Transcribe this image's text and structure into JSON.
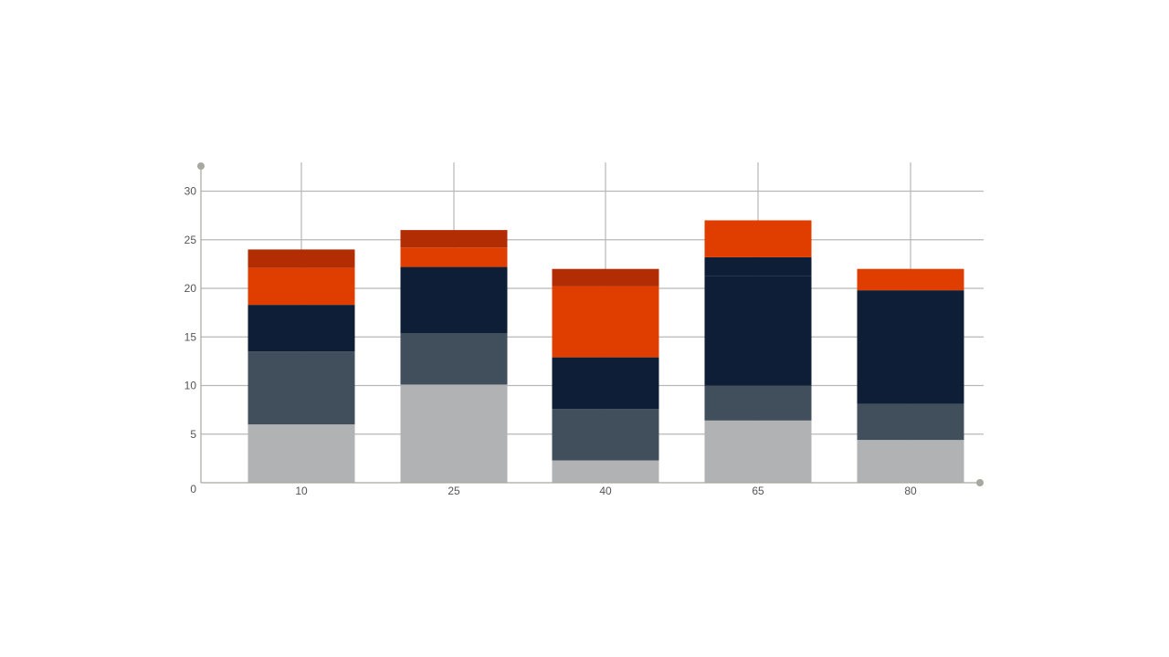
{
  "chart_data": {
    "type": "bar",
    "stacked": true,
    "categories": [
      "10",
      "25",
      "40",
      "65",
      "80"
    ],
    "series": [
      {
        "color": "#b1b2b3",
        "values": [
          6.0,
          10.1,
          2.3,
          6.4,
          4.4
        ]
      },
      {
        "color": "#414e5b",
        "values": [
          7.5,
          5.3,
          5.3,
          3.6,
          3.7
        ]
      },
      {
        "color": "#0e1e36",
        "values": [
          4.8,
          6.8,
          5.3,
          11.3,
          11.7
        ]
      },
      {
        "color": "#0e1e36",
        "values": [
          0,
          0,
          0,
          1.9,
          0
        ]
      },
      {
        "color": "#e03d00",
        "values": [
          3.8,
          2.0,
          7.3,
          3.8,
          2.2
        ]
      },
      {
        "color": "#b32d04",
        "values": [
          1.9,
          1.8,
          1.8,
          0,
          0
        ]
      }
    ],
    "ylim": [
      0,
      30
    ],
    "yticks": [
      "0",
      "5",
      "10",
      "15",
      "20",
      "25",
      "30"
    ],
    "grid": true,
    "xlabel": "",
    "ylabel": ""
  }
}
